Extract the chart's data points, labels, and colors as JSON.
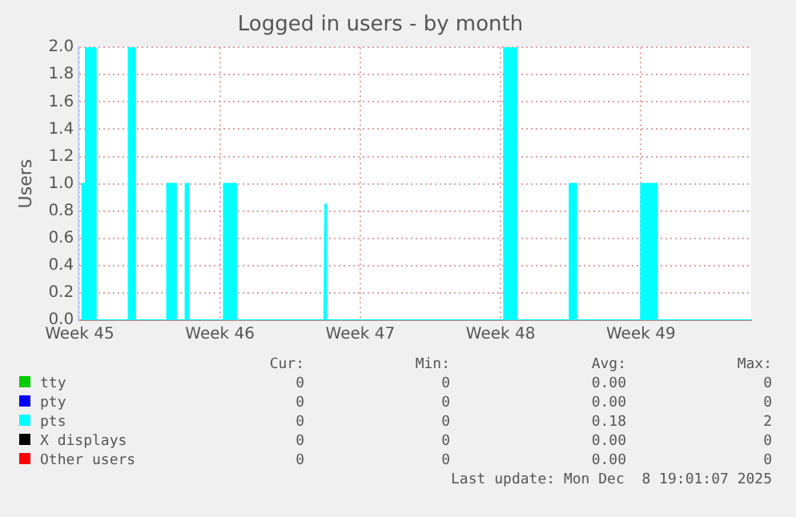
{
  "chart_data": {
    "type": "area",
    "title": "Logged in users - by month",
    "ylabel": "Users",
    "xlim": [
      "2025-11-06T10:48",
      "2025-12-10T00:00"
    ],
    "xticks": [
      {
        "value": "2025-11-06T12:00",
        "label": "Week 45"
      },
      {
        "value": "2025-11-13T12:00",
        "label": "Week 46"
      },
      {
        "value": "2025-11-20T12:00",
        "label": "Week 47"
      },
      {
        "value": "2025-11-27T12:00",
        "label": "Week 48"
      },
      {
        "value": "2025-12-04T12:00",
        "label": "Week 49"
      }
    ],
    "ylim": [
      0,
      2
    ],
    "yticks": [
      {
        "value": 0,
        "label": "0.0"
      },
      {
        "value": 0.2,
        "label": "0.2"
      },
      {
        "value": 0.4,
        "label": "0.4"
      },
      {
        "value": 0.6,
        "label": "0.6"
      },
      {
        "value": 0.8,
        "label": "0.8"
      },
      {
        "value": 1,
        "label": "1.0"
      },
      {
        "value": 1.2,
        "label": "1.2"
      },
      {
        "value": 1.4,
        "label": "1.4"
      },
      {
        "value": 1.6,
        "label": "1.6"
      },
      {
        "value": 1.8,
        "label": "1.8"
      },
      {
        "value": 2,
        "label": "2.0"
      }
    ],
    "grid": true,
    "legend": "bottom",
    "series": [
      {
        "name": "tty",
        "color": "#00cc00"
      },
      {
        "name": "pty",
        "color": "#0000ff"
      },
      {
        "name": "pts",
        "color": "#00ffff",
        "x": [
          "2025-11-06T13:55",
          "2025-11-06T19:12",
          "2025-11-06T19:12",
          "2025-11-07T07:26",
          "2025-11-07T07:26",
          "2025-11-08T22:34",
          "2025-11-08T22:34",
          "2025-11-09T06:29",
          "2025-11-09T06:29",
          "2025-11-10T20:38",
          "2025-11-10T20:38",
          "2025-11-11T07:26",
          "2025-11-11T07:26",
          "2025-11-11T18:43",
          "2025-11-11T18:43",
          "2025-11-11T22:05",
          "2025-11-11T22:05",
          "2025-11-13T16:34",
          "2025-11-13T16:34",
          "2025-11-14T07:26",
          "2025-11-14T07:26",
          "2025-11-18T16:48",
          "2025-11-18T18:00",
          "2025-11-18T19:12",
          "2025-11-27T16:05",
          "2025-11-27T16:05",
          "2025-11-28T07:26",
          "2025-11-28T07:26",
          "2025-11-30T22:34",
          "2025-11-30T22:34",
          "2025-12-01T06:43",
          "2025-12-01T06:43",
          "2025-12-04T12:00",
          "2025-12-04T12:00",
          "2025-12-05T07:26",
          "2025-12-05T07:26",
          "2025-12-10T00:00"
        ],
        "values": [
          1,
          1,
          2,
          2,
          0,
          0,
          2,
          2,
          0,
          0,
          1,
          1,
          0,
          0,
          1,
          1,
          0,
          0,
          1,
          1,
          0,
          0,
          0.85,
          0,
          0,
          2,
          2,
          0,
          0,
          1,
          1,
          0,
          0,
          1,
          1,
          0,
          0
        ]
      },
      {
        "name": "X displays",
        "color": "#000000"
      },
      {
        "name": "Other users",
        "color": "#ff0000"
      }
    ],
    "annotations": [
      "Cur:",
      "Min:",
      "Avg:",
      "Max:",
      "0",
      "0",
      "0.00",
      "0",
      "0",
      "0",
      "0.00",
      "0",
      "0",
      "0",
      "0.18",
      "2",
      "0",
      "0",
      "0.00",
      "0",
      "0",
      "0",
      "0.00",
      "0",
      "Last update: Mon Dec  8 19:01:07 2025"
    ]
  }
}
